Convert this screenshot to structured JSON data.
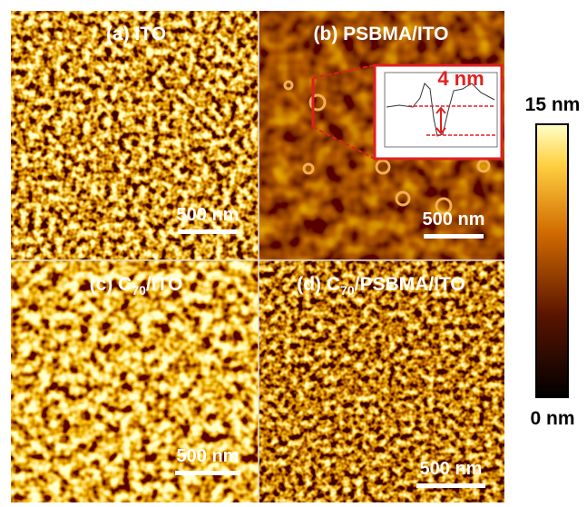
{
  "panels": [
    {
      "label": "(a) ITO",
      "scale_bar": "500 nm"
    },
    {
      "label": "(b) PSBMA/ITO",
      "scale_bar": "500 nm",
      "inset_label": "4 nm"
    },
    {
      "label": {
        "prefix": "(c) C",
        "subscript": "70",
        "suffix": "/ITO"
      },
      "scale_bar": "500 nm"
    },
    {
      "label": {
        "prefix": "(d) C",
        "subscript": "70",
        "suffix": "/PSBMA/ITO"
      },
      "scale_bar": "500 nm"
    }
  ],
  "colorbar": {
    "max_label": "15 nm",
    "min_label": "0 nm"
  }
}
